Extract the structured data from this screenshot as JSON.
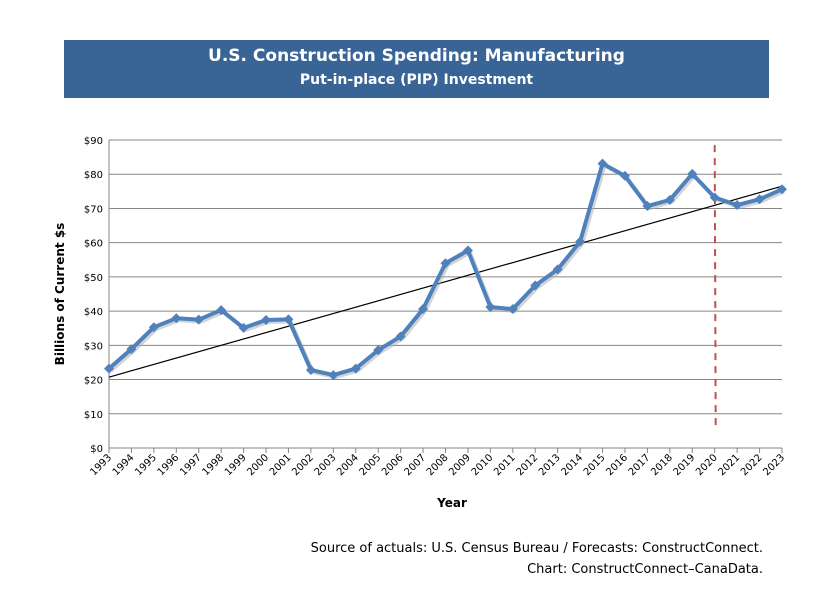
{
  "chart_data": {
    "type": "line",
    "title": "U.S. Construction Spending: Manufacturing",
    "subtitle": "Put-in-place (PIP) Investment",
    "xlabel": "Year",
    "ylabel": "Billions of Current $s",
    "ylim": [
      0,
      90
    ],
    "yticks": [
      "$0",
      "$10",
      "$20",
      "$30",
      "$40",
      "$50",
      "$60",
      "$70",
      "$80",
      "$90"
    ],
    "grid": true,
    "categories": [
      "1993",
      "1994",
      "1995",
      "1996",
      "1997",
      "1998",
      "1999",
      "2000",
      "2001",
      "2002",
      "2003",
      "2004",
      "2005",
      "2006",
      "2007",
      "2008",
      "2009",
      "2010",
      "2011",
      "2012",
      "2013",
      "2014",
      "2015",
      "2016",
      "2017",
      "2018",
      "2019",
      "2020",
      "2021",
      "2022",
      "2023"
    ],
    "series": [
      {
        "values": [
          23.2,
          28.9,
          35.3,
          37.9,
          37.5,
          40.3,
          35.1,
          37.4,
          37.6,
          22.8,
          21.3,
          23.2,
          28.6,
          32.6,
          40.6,
          54.0,
          57.7,
          41.2,
          40.6,
          47.5,
          52.2,
          60.3,
          83.1,
          79.5,
          70.7,
          72.5,
          80.1,
          73.2,
          71.0,
          72.7,
          75.6
        ],
        "color": "#4F81BD"
      }
    ],
    "trendline": {
      "start": 20.7,
      "end": 76.5,
      "color": "#000000"
    },
    "forecast_divider": {
      "year": "2020",
      "color": "#C0504D"
    },
    "source_line1": "Source of actuals: U.S. Census Bureau / Forecasts: ConstructConnect.",
    "source_line2": "Chart: ConstructConnect–CanaData."
  }
}
